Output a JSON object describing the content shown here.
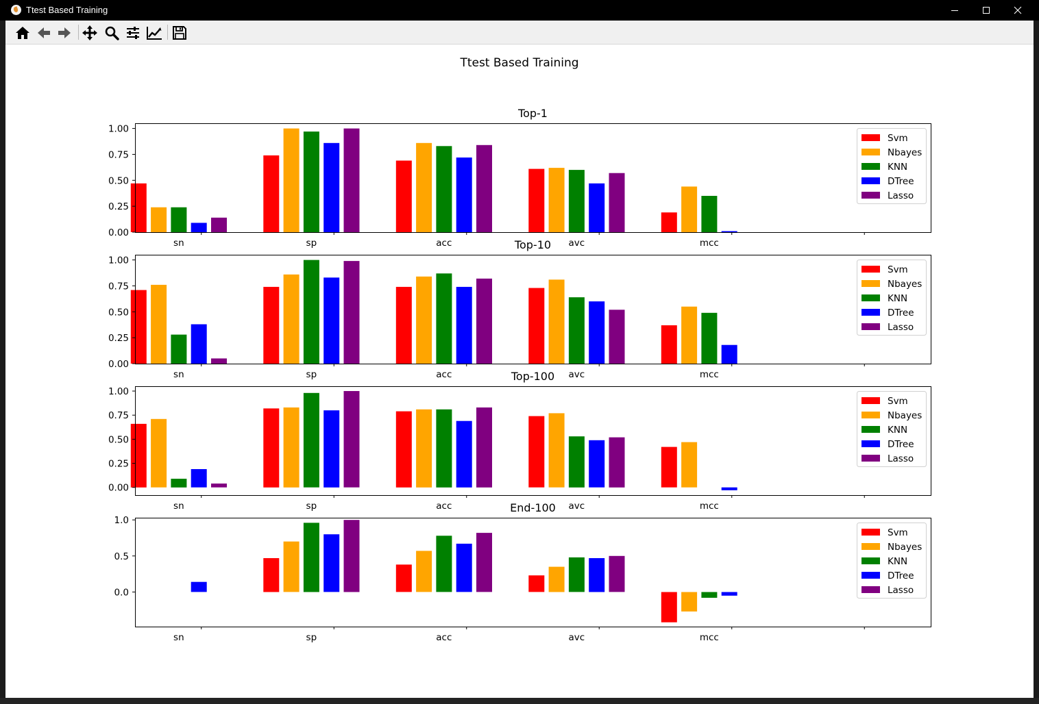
{
  "window": {
    "title": "Ttest Based Training"
  },
  "toolbar": {
    "buttons": [
      {
        "icon": "home-icon"
      },
      {
        "icon": "back-arrow-icon"
      },
      {
        "icon": "forward-arrow-icon"
      },
      {
        "icon": "pan-icon"
      },
      {
        "icon": "zoom-icon"
      },
      {
        "icon": "configure-subplots-icon"
      },
      {
        "icon": "edit-axis-icon"
      },
      {
        "icon": "save-icon"
      }
    ]
  },
  "figure": {
    "suptitle": "Ttest Based Training"
  },
  "chart_data": [
    {
      "type": "bar",
      "title": "Top-1",
      "categories": [
        "sn",
        "sp",
        "acc",
        "avc",
        "mcc"
      ],
      "ylim": [
        0,
        1.05
      ],
      "yticks": [
        "0.00",
        "0.25",
        "0.50",
        "0.75",
        "1.00"
      ],
      "legend_position": "upper-right",
      "series": [
        {
          "name": "Svm",
          "color": "#ff0000",
          "values": [
            0.47,
            0.74,
            0.69,
            0.61,
            0.19
          ]
        },
        {
          "name": "Nbayes",
          "color": "#ffa500",
          "values": [
            0.24,
            1.0,
            0.86,
            0.62,
            0.44
          ]
        },
        {
          "name": "KNN",
          "color": "#008000",
          "values": [
            0.24,
            0.97,
            0.83,
            0.6,
            0.35
          ]
        },
        {
          "name": "DTree",
          "color": "#0000ff",
          "values": [
            0.09,
            0.86,
            0.72,
            0.47,
            0.01
          ]
        },
        {
          "name": "Lasso",
          "color": "#800080",
          "values": [
            0.14,
            1.0,
            0.84,
            0.57,
            0.0
          ]
        }
      ]
    },
    {
      "type": "bar",
      "title": "Top-10",
      "categories": [
        "sn",
        "sp",
        "acc",
        "avc",
        "mcc"
      ],
      "ylim": [
        0,
        1.05
      ],
      "yticks": [
        "0.00",
        "0.25",
        "0.50",
        "0.75",
        "1.00"
      ],
      "legend_position": "upper-right",
      "series": [
        {
          "name": "Svm",
          "color": "#ff0000",
          "values": [
            0.71,
            0.74,
            0.74,
            0.73,
            0.37
          ]
        },
        {
          "name": "Nbayes",
          "color": "#ffa500",
          "values": [
            0.76,
            0.86,
            0.84,
            0.81,
            0.55
          ]
        },
        {
          "name": "KNN",
          "color": "#008000",
          "values": [
            0.28,
            1.0,
            0.87,
            0.64,
            0.49
          ]
        },
        {
          "name": "DTree",
          "color": "#0000ff",
          "values": [
            0.38,
            0.83,
            0.74,
            0.6,
            0.18
          ]
        },
        {
          "name": "Lasso",
          "color": "#800080",
          "values": [
            0.05,
            0.99,
            0.82,
            0.52,
            0.0
          ]
        }
      ]
    },
    {
      "type": "bar",
      "title": "Top-100",
      "categories": [
        "sn",
        "sp",
        "acc",
        "avc",
        "mcc"
      ],
      "ylim": [
        -0.08,
        1.05
      ],
      "yticks": [
        "0.00",
        "0.25",
        "0.50",
        "0.75",
        "1.00"
      ],
      "legend_position": "upper-right",
      "series": [
        {
          "name": "Svm",
          "color": "#ff0000",
          "values": [
            0.66,
            0.82,
            0.79,
            0.74,
            0.42
          ]
        },
        {
          "name": "Nbayes",
          "color": "#ffa500",
          "values": [
            0.71,
            0.83,
            0.81,
            0.77,
            0.47
          ]
        },
        {
          "name": "KNN",
          "color": "#008000",
          "values": [
            0.09,
            0.98,
            0.81,
            0.53,
            0.0
          ]
        },
        {
          "name": "DTree",
          "color": "#0000ff",
          "values": [
            0.19,
            0.8,
            0.69,
            0.49,
            -0.03
          ]
        },
        {
          "name": "Lasso",
          "color": "#800080",
          "values": [
            0.04,
            1.0,
            0.83,
            0.52,
            0.0
          ]
        }
      ]
    },
    {
      "type": "bar",
      "title": "End-100",
      "categories": [
        "sn",
        "sp",
        "acc",
        "avc",
        "mcc"
      ],
      "ylim": [
        -0.48,
        1.03
      ],
      "yticks": [
        "0.0",
        "0.5",
        "1.0"
      ],
      "legend_position": "upper-right",
      "series": [
        {
          "name": "Svm",
          "color": "#ff0000",
          "values": [
            0.0,
            0.47,
            0.38,
            0.23,
            -0.42
          ]
        },
        {
          "name": "Nbayes",
          "color": "#ffa500",
          "values": [
            0.0,
            0.7,
            0.57,
            0.35,
            -0.27
          ]
        },
        {
          "name": "KNN",
          "color": "#008000",
          "values": [
            0.0,
            0.96,
            0.78,
            0.48,
            -0.08
          ]
        },
        {
          "name": "DTree",
          "color": "#0000ff",
          "values": [
            0.14,
            0.8,
            0.67,
            0.47,
            -0.05
          ]
        },
        {
          "name": "Lasso",
          "color": "#800080",
          "values": [
            0.0,
            1.0,
            0.82,
            0.5,
            0.0
          ]
        }
      ]
    }
  ]
}
